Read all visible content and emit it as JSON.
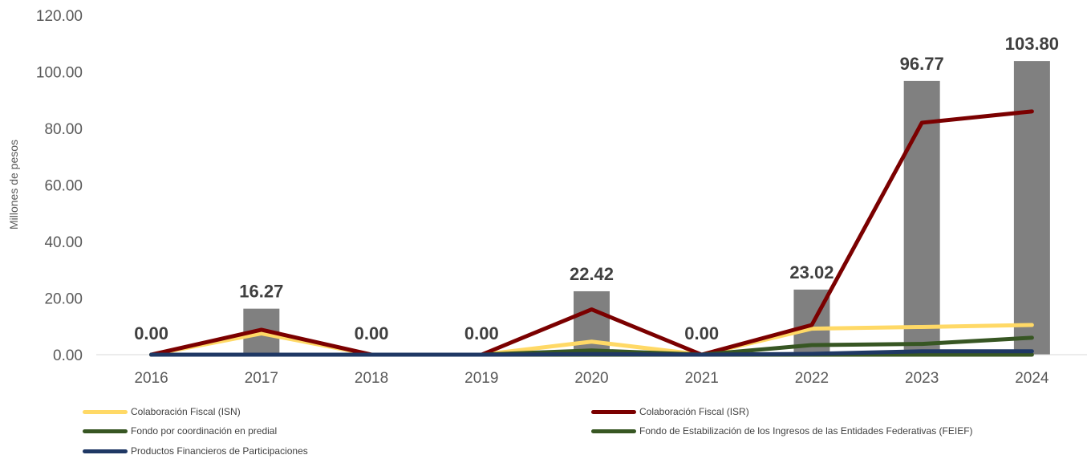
{
  "chart_data": {
    "type": "bar",
    "ylabel": "Millones de pesos",
    "ylim": [
      0,
      120
    ],
    "yticks": [
      "0.00",
      "20.00",
      "40.00",
      "60.00",
      "80.00",
      "100.00",
      "120.00"
    ],
    "categories": [
      "2016",
      "2017",
      "2018",
      "2019",
      "2020",
      "2021",
      "2022",
      "2023",
      "2024"
    ],
    "bars": {
      "color": "#808080",
      "values": [
        0.0,
        16.27,
        0.0,
        0.0,
        22.42,
        0.0,
        23.02,
        96.77,
        103.8
      ],
      "labels": [
        "0.00",
        "16.27",
        "0.00",
        "0.00",
        "22.42",
        "0.00",
        "23.02",
        "96.77",
        "103.80"
      ]
    },
    "series": [
      {
        "name": "Colaboración Fiscal (ISN)",
        "type": "line",
        "color": "#FFD966",
        "values": [
          0,
          7.5,
          0,
          0,
          4.6,
          0,
          9.2,
          9.8,
          10.5
        ]
      },
      {
        "name": "Colaboración Fiscal (ISR)",
        "type": "line",
        "color": "#7B0000",
        "values": [
          0,
          8.8,
          0,
          0,
          16.0,
          0,
          10.5,
          82.0,
          86.0
        ]
      },
      {
        "name": "Fondo por coordinación en predial",
        "type": "line",
        "color": "#375623",
        "values": [
          0,
          0,
          0,
          0,
          1.5,
          0,
          3.4,
          3.8,
          6.0
        ]
      },
      {
        "name": "Fondo de Estabilización de los Ingresos de las Entidades Federativas (FEIEF)",
        "type": "line",
        "color": "#385723",
        "values": [
          0,
          0,
          0,
          0,
          0,
          0,
          0,
          0,
          0
        ]
      },
      {
        "name": "Productos Financieros de Participaciones",
        "type": "line",
        "color": "#1F3864",
        "values": [
          0,
          0,
          0,
          0,
          0.2,
          0,
          0.3,
          1.2,
          1.2
        ]
      }
    ],
    "grid": false,
    "legend": "bottom"
  }
}
